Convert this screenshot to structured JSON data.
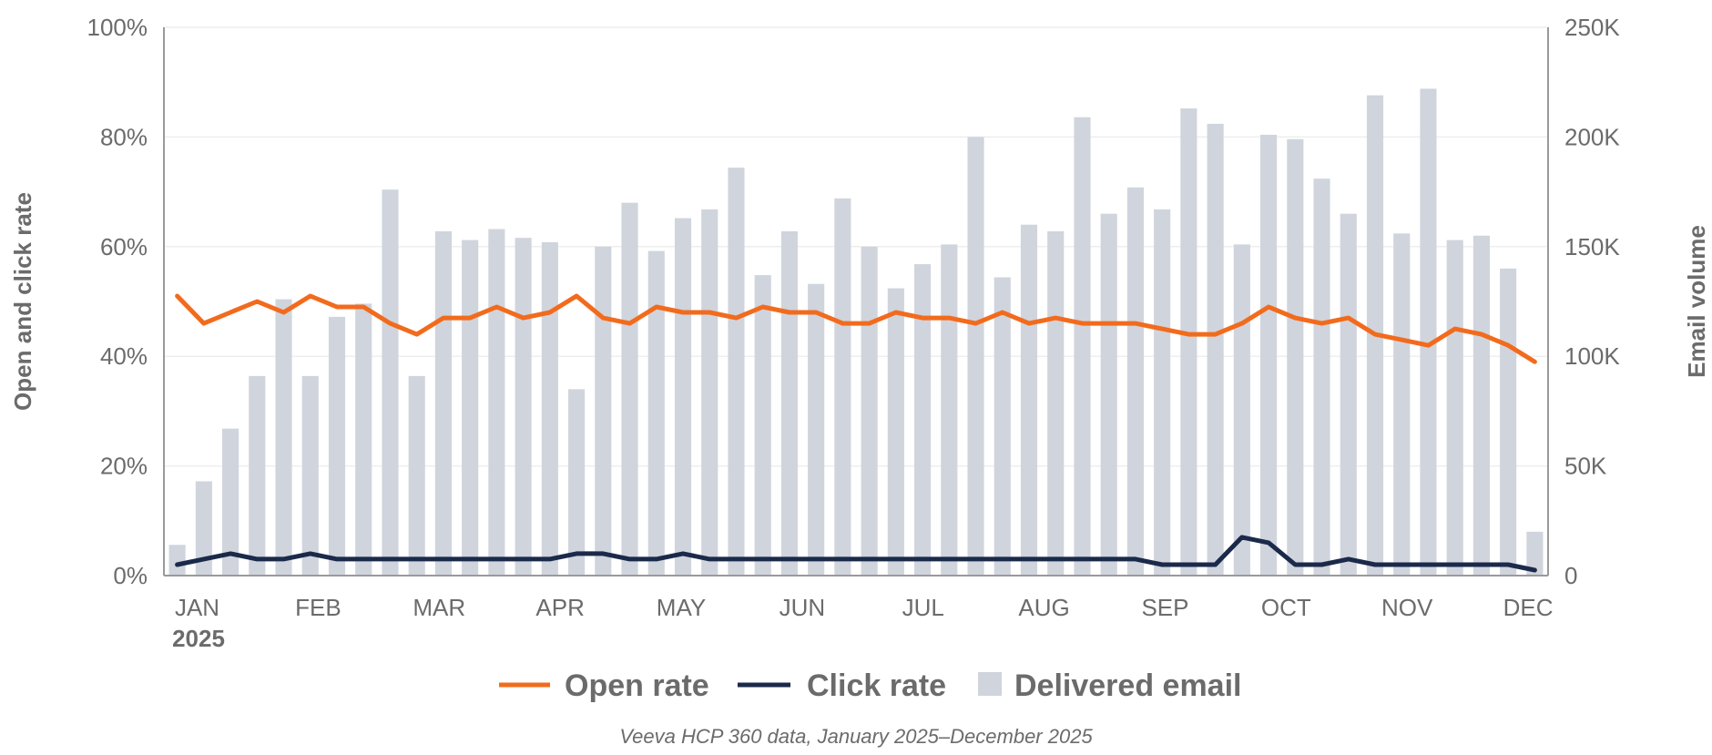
{
  "chart_data": {
    "type": "bar+line",
    "left_axis": {
      "label": "Open and click rate",
      "ylim": [
        0,
        100
      ],
      "ticks": [
        "0%",
        "20%",
        "40%",
        "60%",
        "80%",
        "100%"
      ]
    },
    "right_axis": {
      "label": "Email volume",
      "ylim": [
        0,
        250000
      ],
      "ticks": [
        "0",
        "50K",
        "100K",
        "150K",
        "200K",
        "250K"
      ]
    },
    "x_axis": {
      "month_labels": [
        "JAN",
        "FEB",
        "MAR",
        "APR",
        "MAY",
        "JUN",
        "JUL",
        "AUG",
        "SEP",
        "OCT",
        "NOV",
        "DEC"
      ],
      "year_label": "2025",
      "week_count": 52
    },
    "series": [
      {
        "name": "Open rate",
        "type": "line",
        "axis": "left",
        "color": "#f26b1d",
        "values": [
          51,
          46,
          48,
          50,
          48,
          51,
          49,
          49,
          46,
          44,
          47,
          47,
          49,
          47,
          48,
          51,
          47,
          46,
          49,
          48,
          48,
          47,
          49,
          48,
          48,
          46,
          46,
          48,
          47,
          47,
          46,
          48,
          46,
          47,
          46,
          46,
          46,
          45,
          44,
          44,
          46,
          49,
          47,
          46,
          47,
          44,
          43,
          42,
          45,
          44,
          42,
          39
        ]
      },
      {
        "name": "Click rate",
        "type": "line",
        "axis": "right_none",
        "color": "#1b2a4a",
        "values": [
          2,
          3,
          4,
          3,
          3,
          4,
          3,
          3,
          3,
          3,
          3,
          3,
          3,
          3,
          3,
          4,
          4,
          3,
          3,
          4,
          3,
          3,
          3,
          3,
          3,
          3,
          3,
          3,
          3,
          3,
          3,
          3,
          3,
          3,
          3,
          3,
          3,
          2,
          2,
          2,
          7,
          6,
          2,
          2,
          3,
          2,
          2,
          2,
          2,
          2,
          2,
          1
        ]
      },
      {
        "name": "Delivered email",
        "type": "bar",
        "axis": "right",
        "color": "#d0d4dd",
        "values": [
          14000,
          43000,
          67000,
          91000,
          126000,
          91000,
          118000,
          124000,
          176000,
          91000,
          157000,
          153000,
          158000,
          154000,
          152000,
          85000,
          150000,
          170000,
          148000,
          163000,
          167000,
          186000,
          137000,
          157000,
          133000,
          172000,
          150000,
          131000,
          142000,
          151000,
          200000,
          136000,
          160000,
          157000,
          209000,
          165000,
          177000,
          167000,
          213000,
          206000,
          151000,
          201000,
          199000,
          181000,
          165000,
          219000,
          156000,
          222000,
          153000,
          155000,
          140000,
          20000
        ]
      }
    ],
    "legend": [
      "Open rate",
      "Click rate",
      "Delivered email"
    ],
    "legend_position": "bottom",
    "grid": true
  },
  "source": "Veeva HCP 360 data, January 2025–December 2025"
}
